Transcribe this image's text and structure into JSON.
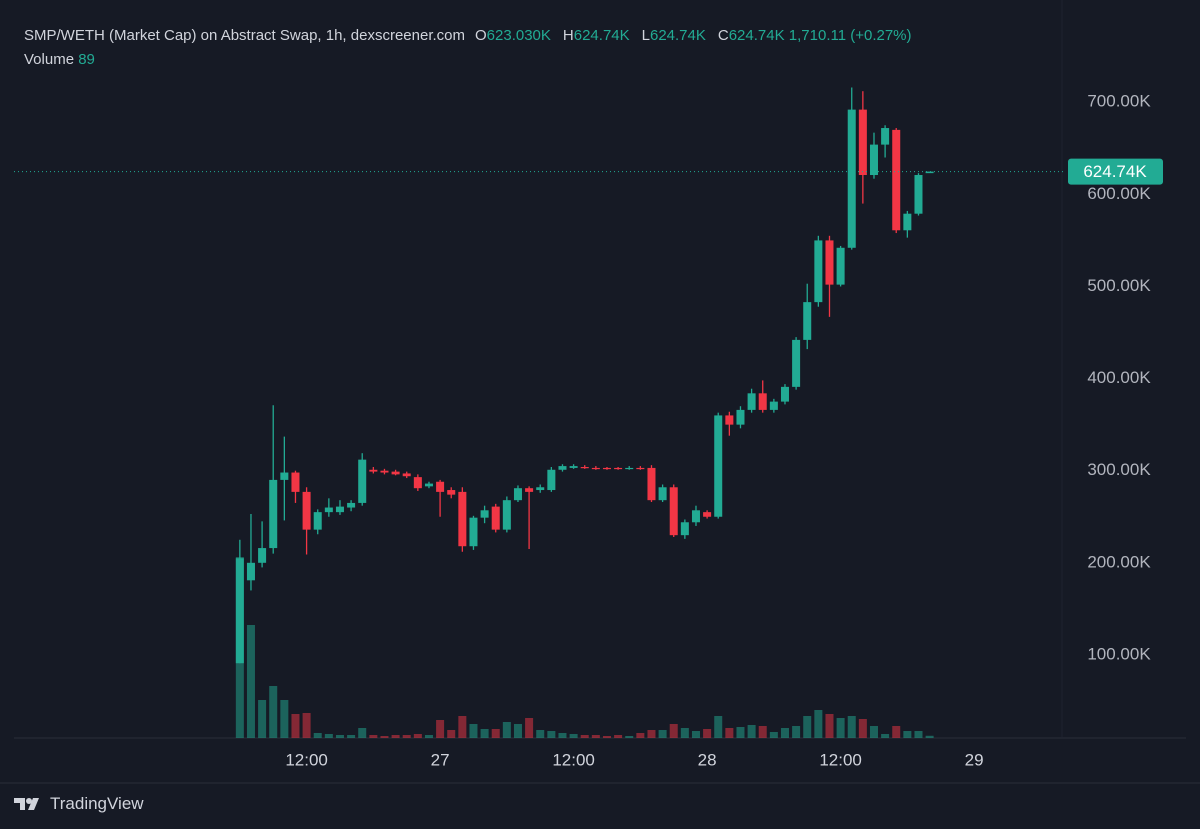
{
  "header": {
    "title": "SMP/WETH (Market Cap) on Abstract Swap, 1h, dexscreener.com",
    "ohlc": [
      {
        "label": "O",
        "value": "623.030K"
      },
      {
        "label": "H",
        "value": "624.74K"
      },
      {
        "label": "L",
        "value": "624.74K"
      },
      {
        "label": "C",
        "value": "624.74K"
      }
    ],
    "change": "1,710.11 (+0.27%)",
    "volume_label": "Volume",
    "volume_value": "89"
  },
  "footer": {
    "brand": "TradingView"
  },
  "chart_data": {
    "type": "candlestick",
    "up_color": "#22ab94",
    "down_color": "#f23645",
    "open": [
      91,
      181,
      200,
      216,
      290,
      298,
      277,
      236,
      255,
      255,
      260,
      265,
      301,
      300,
      299,
      297,
      293,
      283,
      288,
      279,
      277,
      218,
      249,
      261,
      236,
      268,
      281,
      279,
      279,
      301,
      303,
      304,
      303,
      303,
      303,
      302,
      303,
      303,
      268,
      282,
      230,
      244,
      255,
      250,
      360,
      350,
      366,
      384,
      366,
      375,
      391,
      442,
      483,
      550,
      502,
      542,
      692,
      621,
      654,
      670,
      561,
      579,
      623.03
    ],
    "high": [
      225,
      253,
      245,
      371,
      337,
      300,
      282,
      258,
      270,
      268,
      268,
      319,
      304,
      302,
      301,
      299,
      296,
      288,
      290,
      282,
      282,
      251,
      262,
      264,
      272,
      284,
      283,
      285,
      304,
      307,
      307,
      306,
      305,
      304,
      304,
      305,
      305,
      306,
      285,
      285,
      247,
      262,
      257,
      363,
      364,
      370,
      389,
      398,
      378,
      394,
      445,
      503,
      555,
      555,
      544,
      716,
      712,
      667,
      675,
      672,
      582,
      623,
      624.74
    ],
    "low": [
      91,
      170,
      195,
      210,
      246,
      265,
      209,
      231,
      250,
      252,
      256,
      262,
      297,
      296,
      295,
      292,
      278,
      281,
      250,
      270,
      212,
      214,
      243,
      233,
      233,
      266,
      215,
      276,
      277,
      299,
      302,
      302,
      301,
      301,
      301,
      301,
      301,
      266,
      266,
      228,
      226,
      240,
      248,
      248,
      338,
      346,
      363,
      363,
      363,
      372,
      388,
      432,
      478,
      467,
      500,
      540,
      590,
      617,
      640,
      558,
      553,
      577,
      624.74
    ],
    "close": [
      205,
      200,
      216,
      290,
      298,
      277,
      236,
      255,
      260,
      261,
      265,
      312,
      299,
      298,
      296,
      294,
      281,
      286,
      277,
      274,
      218,
      249,
      257,
      236,
      268,
      281,
      277,
      282,
      301,
      305,
      305,
      303,
      302,
      302,
      302,
      303,
      302,
      268,
      282,
      230,
      244,
      257,
      250,
      360,
      350,
      366,
      384,
      366,
      375,
      391,
      442,
      483,
      550,
      502,
      542,
      692,
      621,
      654,
      672,
      561,
      579,
      621,
      624.74
    ],
    "volume": [
      7240,
      4520,
      1520,
      2080,
      1520,
      960,
      1000,
      200,
      160,
      120,
      120,
      400,
      120,
      80,
      120,
      120,
      160,
      120,
      720,
      320,
      880,
      560,
      360,
      360,
      640,
      560,
      800,
      320,
      280,
      200,
      160,
      120,
      120,
      80,
      120,
      80,
      200,
      320,
      320,
      560,
      400,
      280,
      360,
      880,
      400,
      440,
      520,
      480,
      240,
      400,
      480,
      880,
      1120,
      960,
      800,
      880,
      760,
      480,
      160,
      480,
      280,
      280,
      89
    ],
    "vlim": [
      0,
      29520
    ],
    "ylim": [
      9.8,
      811
    ],
    "yticks": [
      {
        "value": 100,
        "label": "100.00K"
      },
      {
        "value": 200,
        "label": "200.00K"
      },
      {
        "value": 300,
        "label": "300.00K"
      },
      {
        "value": 400,
        "label": "400.00K"
      },
      {
        "value": 500,
        "label": "500.00K"
      },
      {
        "value": 600,
        "label": "600.00K"
      },
      {
        "value": 700,
        "label": "700.00K"
      }
    ],
    "xlim": [
      -20.3,
      73.9
    ],
    "xticks": [
      {
        "value": 6,
        "label": "12:00"
      },
      {
        "value": 18,
        "label": "27"
      },
      {
        "value": 30,
        "label": "12:00"
      },
      {
        "value": 42,
        "label": "28"
      },
      {
        "value": 54,
        "label": "12:00"
      },
      {
        "value": 66,
        "label": "29"
      }
    ],
    "last_price": {
      "value": 624.74,
      "label": "624.74K"
    },
    "grid": false
  }
}
